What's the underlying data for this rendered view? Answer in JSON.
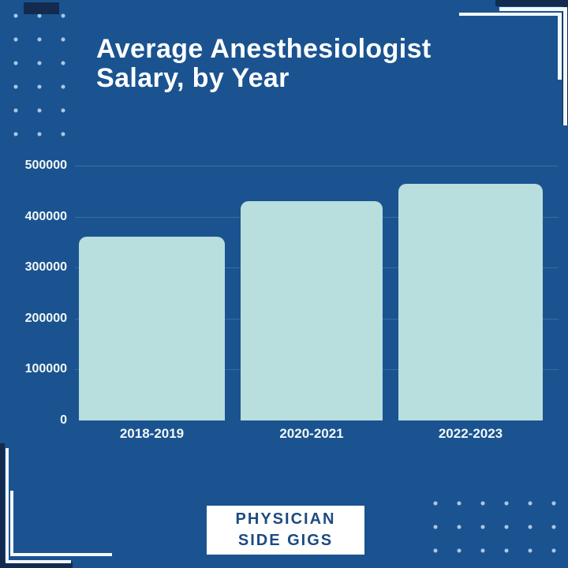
{
  "title": {
    "line1": "Average Anesthesiologist",
    "line2": "Salary, by Year"
  },
  "chart_data": {
    "type": "bar",
    "title": "Average Anesthesiologist Salary, by Year",
    "categories": [
      "2018-2019",
      "2020-2021",
      "2022-2023"
    ],
    "values": [
      360000,
      430000,
      465000
    ],
    "xlabel": "",
    "ylabel": "",
    "ylim": [
      0,
      500000
    ],
    "yticks": [
      0,
      100000,
      200000,
      300000,
      400000,
      500000
    ],
    "ytick_labels": [
      "0",
      "100000",
      "200000",
      "300000",
      "400000",
      "500000"
    ],
    "grid": true,
    "legend": "none",
    "bar_color": "#b8dedd",
    "background_color": "#1a5390",
    "label_color": "#ffffff"
  },
  "footer": {
    "logo_line1": "PHYSICIAN",
    "logo_line2": "SIDE GIGS"
  },
  "colors": {
    "background": "#1a5390",
    "corner_navy": "#132b4e",
    "bracket_white": "#f2f8fb",
    "bar_fill": "#b8dedd",
    "logo_text": "#1d4b80"
  }
}
